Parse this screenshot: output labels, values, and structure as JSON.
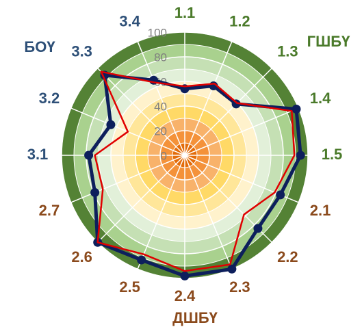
{
  "chart_data": {
    "type": "radar",
    "categories": [
      "1.1",
      "1.2",
      "1.3",
      "1.4",
      "1.5",
      "2.1",
      "2.2",
      "2.3",
      "2.4",
      "2.5",
      "2.6",
      "2.7",
      "3.1",
      "3.2",
      "3.3",
      "3.4"
    ],
    "category_colors": [
      "#4a7a2a",
      "#4a7a2a",
      "#4a7a2a",
      "#4a7a2a",
      "#4a7a2a",
      "#8b4a1c",
      "#8b4a1c",
      "#8b4a1c",
      "#8b4a1c",
      "#8b4a1c",
      "#8b4a1c",
      "#8b4a1c",
      "#2e5078",
      "#2e5078",
      "#2e5078",
      "#2e5078"
    ],
    "groups": [
      {
        "label": "ГШБҮ",
        "color": "#4a7a2a"
      },
      {
        "label": "ДШБҮ",
        "color": "#8b4a1c"
      },
      {
        "label": "БОҮ",
        "color": "#2e5078"
      }
    ],
    "series": [
      {
        "color": "#0d1f5c",
        "markers": true,
        "values": [
          54,
          61,
          59,
          98,
          94,
          84,
          84,
          100,
          98,
          92,
          100,
          79,
          78,
          65,
          92,
          66
        ]
      },
      {
        "color": "#e00000",
        "markers": false,
        "values": [
          56,
          63,
          60,
          94,
          89,
          79,
          68,
          96,
          94,
          87,
          100,
          72,
          73,
          50,
          96,
          64
        ]
      }
    ],
    "ylim": [
      0,
      100
    ],
    "yticks": [
      0,
      20,
      40,
      60,
      80,
      100
    ],
    "grid": true
  }
}
